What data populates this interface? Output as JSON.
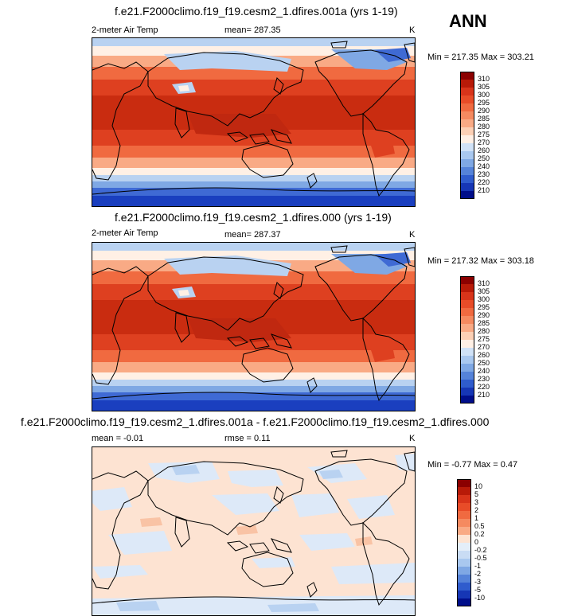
{
  "season": "ANN",
  "panels": [
    {
      "title": "f.e21.F2000climo.f19_f19.cesm2_1.dfires.001a (yrs 1-19)",
      "variable": "2-meter Air Temp",
      "mean": "mean= 287.35",
      "units": "K",
      "minmax": "Min = 217.35 Max = 303.21",
      "kind": "absolute"
    },
    {
      "title": "f.e21.F2000climo.f19_f19.cesm2_1.dfires.000 (yrs 1-19)",
      "variable": "2-meter Air Temp",
      "mean": "mean= 287.37",
      "units": "K",
      "minmax": "Min = 217.32 Max = 303.18",
      "kind": "absolute"
    },
    {
      "title": "f.e21.F2000climo.f19_f19.cesm2_1.dfires.001a - f.e21.F2000climo.f19_f19.cesm2_1.dfires.000",
      "variable": "mean =  -0.01",
      "mean": "rmse =   0.11",
      "units": "K",
      "minmax": "Min =  -0.77 Max =   0.47",
      "kind": "difference"
    }
  ],
  "colorbars": {
    "absolute": {
      "labels": [
        "310",
        "305",
        "300",
        "295",
        "290",
        "285",
        "280",
        "275",
        "270",
        "260",
        "250",
        "240",
        "230",
        "220",
        "210"
      ],
      "colors": [
        "#8b0000",
        "#b81a08",
        "#d8341a",
        "#e84c28",
        "#f06a40",
        "#f58a60",
        "#f9aa85",
        "#fcd0b5",
        "#fff0e5",
        "#d0e2f7",
        "#a9c8ef",
        "#7fa8e4",
        "#5583d9",
        "#2f5ccd",
        "#1636b5",
        "#000e8a"
      ]
    },
    "difference": {
      "labels": [
        "10",
        "5",
        "3",
        "2",
        "1",
        "0.5",
        "0.2",
        "0",
        "-0.2",
        "-0.5",
        "-1",
        "-2",
        "-3",
        "-5",
        "-10"
      ],
      "colors": [
        "#8b0000",
        "#b81a08",
        "#d8341a",
        "#e84c28",
        "#f06a40",
        "#f58a60",
        "#f9aa85",
        "#fde3d2",
        "#e4eef9",
        "#c9dcf4",
        "#a9c8ef",
        "#7fa8e4",
        "#5583d9",
        "#2f5ccd",
        "#1636b5",
        "#000e8a"
      ]
    }
  },
  "map_colors": {
    "polar_dark": "#1a3fbf",
    "polar_mid": "#3f6ad4",
    "cold": "#7fa8e4",
    "cool": "#b9d2f1",
    "mild": "#fff0e5",
    "warmish": "#f9aa85",
    "warm": "#f06a40",
    "hot": "#de4020",
    "hotter": "#c92c10",
    "land_line": "#000000",
    "diff_pos": "#fde3d2",
    "diff_neg": "#dde9f8",
    "diff_neg2": "#b9d2f1",
    "diff_pos2": "#f9c3a5"
  }
}
